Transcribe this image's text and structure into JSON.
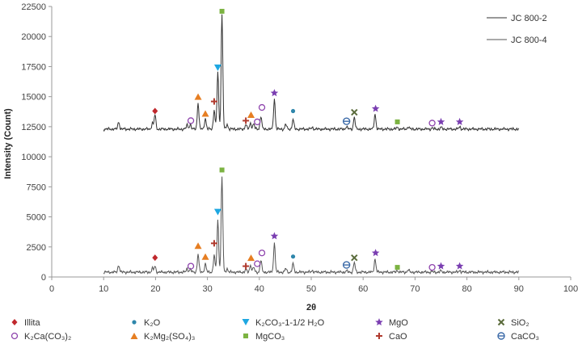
{
  "chart_data": {
    "type": "line",
    "xlabel": "2θ",
    "ylabel": "Intensity (Count)",
    "xlim": [
      0,
      100
    ],
    "ylim": [
      0,
      22500
    ],
    "xticks": [
      0,
      10,
      20,
      30,
      40,
      50,
      60,
      70,
      80,
      90,
      100
    ],
    "yticks": [
      0,
      2500,
      5000,
      7500,
      10000,
      12500,
      15000,
      17500,
      20000,
      22500
    ],
    "grid": false,
    "legend_position": "top-right",
    "series": [
      {
        "name": "JC 800-2",
        "color": "#333333",
        "baseline": 12300,
        "x_range": [
          10,
          90
        ],
        "peaks": [
          {
            "x": 12.9,
            "y": 12900
          },
          {
            "x": 19.4,
            "y": 12800
          },
          {
            "x": 19.9,
            "y": 13500
          },
          {
            "x": 26.1,
            "y": 12650
          },
          {
            "x": 26.7,
            "y": 12700
          },
          {
            "x": 28.2,
            "y": 14500
          },
          {
            "x": 29.6,
            "y": 13200
          },
          {
            "x": 31.3,
            "y": 13900
          },
          {
            "x": 32.0,
            "y": 17000
          },
          {
            "x": 32.8,
            "y": 21800
          },
          {
            "x": 33.8,
            "y": 12700
          },
          {
            "x": 37.4,
            "y": 12700
          },
          {
            "x": 38.3,
            "y": 12800
          },
          {
            "x": 38.9,
            "y": 12750
          },
          {
            "x": 40.3,
            "y": 13400
          },
          {
            "x": 42.9,
            "y": 14800
          },
          {
            "x": 45.1,
            "y": 12700
          },
          {
            "x": 46.5,
            "y": 13100
          },
          {
            "x": 50.2,
            "y": 12450
          },
          {
            "x": 56.8,
            "y": 12500
          },
          {
            "x": 58.3,
            "y": 13300
          },
          {
            "x": 62.3,
            "y": 13550
          },
          {
            "x": 66.6,
            "y": 12450
          },
          {
            "x": 68.7,
            "y": 12500
          },
          {
            "x": 73.3,
            "y": 12400
          },
          {
            "x": 75.0,
            "y": 12450
          },
          {
            "x": 78.6,
            "y": 12500
          }
        ]
      },
      {
        "name": "JC 800-4",
        "color": "#555555",
        "baseline": 400,
        "x_range": [
          10,
          90
        ],
        "peaks": [
          {
            "x": 12.9,
            "y": 1000
          },
          {
            "x": 19.4,
            "y": 700
          },
          {
            "x": 19.9,
            "y": 900
          },
          {
            "x": 26.1,
            "y": 700
          },
          {
            "x": 26.7,
            "y": 650
          },
          {
            "x": 28.2,
            "y": 1900
          },
          {
            "x": 29.6,
            "y": 1100
          },
          {
            "x": 31.3,
            "y": 1800
          },
          {
            "x": 32.0,
            "y": 4700
          },
          {
            "x": 32.8,
            "y": 8300
          },
          {
            "x": 33.8,
            "y": 700
          },
          {
            "x": 37.4,
            "y": 600
          },
          {
            "x": 38.3,
            "y": 1000
          },
          {
            "x": 38.9,
            "y": 800
          },
          {
            "x": 40.3,
            "y": 1400
          },
          {
            "x": 42.9,
            "y": 2800
          },
          {
            "x": 45.1,
            "y": 700
          },
          {
            "x": 46.5,
            "y": 1100
          },
          {
            "x": 50.2,
            "y": 550
          },
          {
            "x": 56.8,
            "y": 500
          },
          {
            "x": 58.3,
            "y": 1200
          },
          {
            "x": 62.3,
            "y": 1500
          },
          {
            "x": 66.6,
            "y": 550
          },
          {
            "x": 68.7,
            "y": 600
          },
          {
            "x": 73.3,
            "y": 450
          },
          {
            "x": 75.0,
            "y": 500
          },
          {
            "x": 78.6,
            "y": 550
          }
        ]
      }
    ],
    "phases": [
      {
        "key": "illita",
        "label": "Illita",
        "symbol": "diamond",
        "color": "#c0282d"
      },
      {
        "key": "k2o",
        "label": "K₂O",
        "symbol": "dot",
        "color": "#2e86ab"
      },
      {
        "key": "k2co3",
        "label": "K₂CO₃-1-1/2 H₂O",
        "symbol": "triangle-down",
        "color": "#1ea7e1"
      },
      {
        "key": "mgo",
        "label": "MgO",
        "symbol": "star",
        "color": "#7a3eb1"
      },
      {
        "key": "sio2",
        "label": "SiO₂",
        "symbol": "x",
        "color": "#5a6b3b"
      },
      {
        "key": "k2ca",
        "label": "K₂Ca(CO₃)₂",
        "symbol": "circle-open",
        "color": "#8e44ad"
      },
      {
        "key": "k2mg2",
        "label": "K₂Mg₂(SO₄)₃",
        "symbol": "triangle-up",
        "color": "#e67e22"
      },
      {
        "key": "mgco3",
        "label": "MgCO₃",
        "symbol": "square",
        "color": "#7cb342"
      },
      {
        "key": "cao",
        "label": "CaO",
        "symbol": "plus",
        "color": "#b03a2e"
      },
      {
        "key": "caco3",
        "label": "CaCO₃",
        "symbol": "circle-bar",
        "color": "#3b6aa8"
      }
    ],
    "annotations": [
      {
        "phase": "illita",
        "x": 19.9,
        "y": 13800
      },
      {
        "phase": "k2ca",
        "x": 26.8,
        "y": 13000
      },
      {
        "phase": "k2mg2",
        "x": 28.2,
        "y": 15000
      },
      {
        "phase": "k2mg2",
        "x": 29.6,
        "y": 13600
      },
      {
        "phase": "cao",
        "x": 31.3,
        "y": 14600
      },
      {
        "phase": "k2co3",
        "x": 32.0,
        "y": 17400
      },
      {
        "phase": "mgco3",
        "x": 32.8,
        "y": 22100
      },
      {
        "phase": "cao",
        "x": 37.4,
        "y": 13000
      },
      {
        "phase": "k2mg2",
        "x": 38.4,
        "y": 13500
      },
      {
        "phase": "k2ca",
        "x": 39.6,
        "y": 12900
      },
      {
        "phase": "k2ca",
        "x": 40.5,
        "y": 14100
      },
      {
        "phase": "mgo",
        "x": 42.9,
        "y": 15300
      },
      {
        "phase": "k2o",
        "x": 46.5,
        "y": 13800
      },
      {
        "phase": "caco3",
        "x": 56.8,
        "y": 12950
      },
      {
        "phase": "sio2",
        "x": 58.3,
        "y": 13700
      },
      {
        "phase": "mgo",
        "x": 62.4,
        "y": 14000
      },
      {
        "phase": "mgco3",
        "x": 66.6,
        "y": 12900
      },
      {
        "phase": "k2ca",
        "x": 73.3,
        "y": 12800
      },
      {
        "phase": "mgo",
        "x": 75.0,
        "y": 12900
      },
      {
        "phase": "mgo",
        "x": 78.6,
        "y": 12900
      },
      {
        "phase": "illita",
        "x": 19.9,
        "y": 1600
      },
      {
        "phase": "k2ca",
        "x": 26.8,
        "y": 900
      },
      {
        "phase": "k2mg2",
        "x": 28.2,
        "y": 2600
      },
      {
        "phase": "k2mg2",
        "x": 29.6,
        "y": 1700
      },
      {
        "phase": "cao",
        "x": 31.3,
        "y": 2800
      },
      {
        "phase": "k2co3",
        "x": 32.0,
        "y": 5400
      },
      {
        "phase": "mgco3",
        "x": 32.8,
        "y": 8900
      },
      {
        "phase": "cao",
        "x": 37.4,
        "y": 900
      },
      {
        "phase": "k2mg2",
        "x": 38.4,
        "y": 1600
      },
      {
        "phase": "k2ca",
        "x": 39.6,
        "y": 1100
      },
      {
        "phase": "k2ca",
        "x": 40.5,
        "y": 2000
      },
      {
        "phase": "mgo",
        "x": 42.9,
        "y": 3400
      },
      {
        "phase": "k2o",
        "x": 46.5,
        "y": 1700
      },
      {
        "phase": "caco3",
        "x": 56.8,
        "y": 1000
      },
      {
        "phase": "sio2",
        "x": 58.3,
        "y": 1600
      },
      {
        "phase": "mgo",
        "x": 62.4,
        "y": 2000
      },
      {
        "phase": "mgco3",
        "x": 66.6,
        "y": 800
      },
      {
        "phase": "k2ca",
        "x": 73.3,
        "y": 800
      },
      {
        "phase": "mgo",
        "x": 75.0,
        "y": 900
      },
      {
        "phase": "mgo",
        "x": 78.6,
        "y": 900
      }
    ]
  }
}
